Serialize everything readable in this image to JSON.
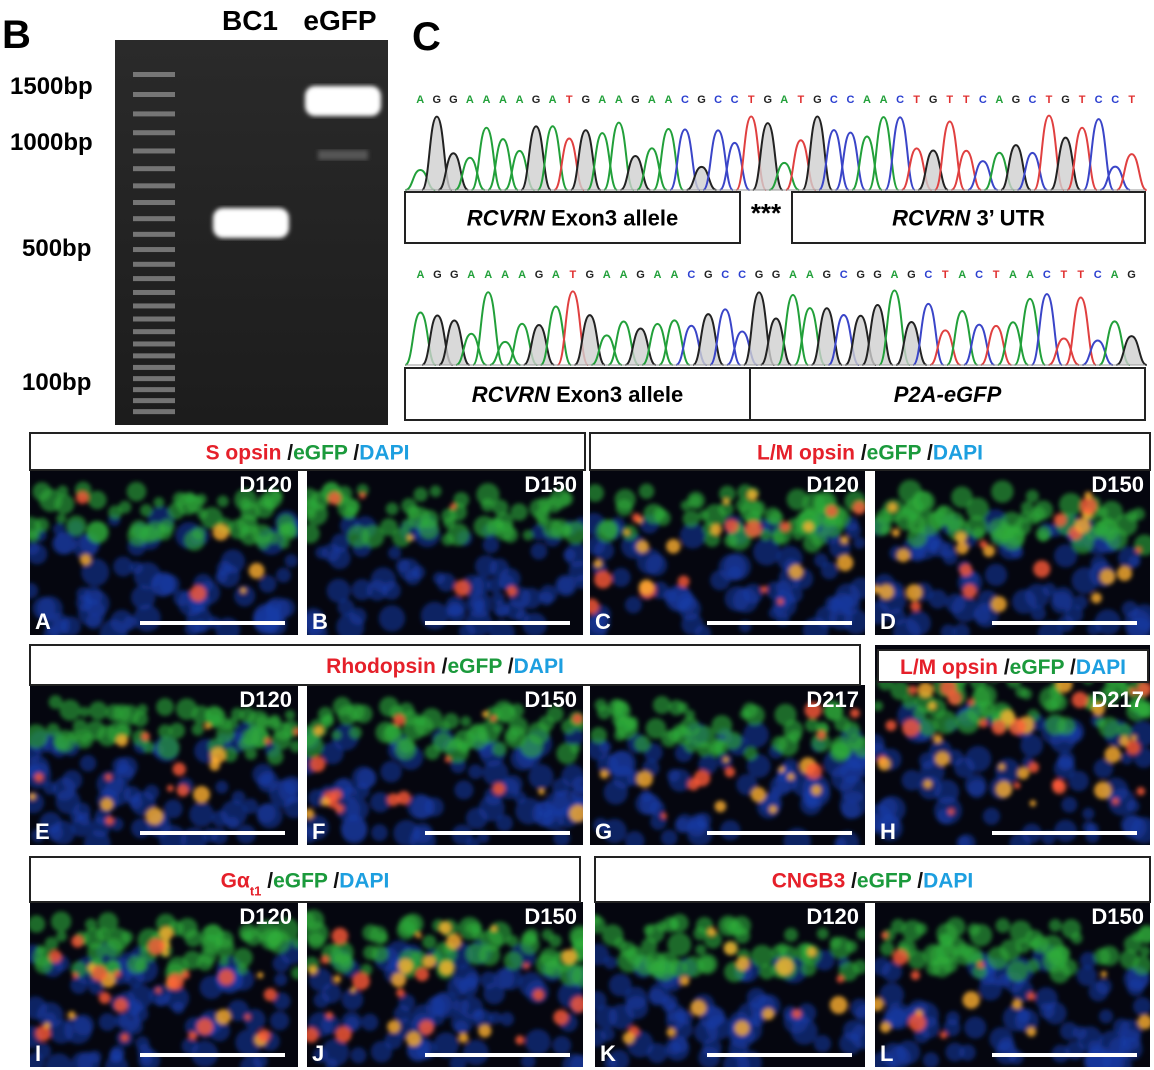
{
  "panel_b": {
    "label": "B",
    "lanes": [
      "BC1",
      "eGFP"
    ],
    "ladder": [
      "1500bp",
      "1000bp",
      "500bp",
      "100bp"
    ]
  },
  "panel_c": {
    "label": "C",
    "rows": [
      {
        "sequence": "AGGAAAAGATGAAGAACGCCTGATGCCAACTGTTCAGCTGTCCT",
        "boxes": [
          {
            "italic": "RCVRN",
            "text": " Exon3 allele"
          },
          {
            "italic": "RCVRN",
            "text": "  3’ UTR"
          }
        ],
        "junction": "***"
      },
      {
        "sequence": "AGGAAAAGATGAAGAACGCCGGAAGCGGAGCTACTAACTTCAG",
        "boxes": [
          {
            "italic": "RCVRN",
            "text": " Exon3 allele"
          },
          {
            "italic": "P2A-eGFP",
            "text": ""
          }
        ]
      }
    ]
  },
  "panels": [
    {
      "header": [
        {
          "text": "S opsin",
          "color": "red"
        },
        {
          "text": " /",
          "color": "black"
        },
        {
          "text": "eGFP",
          "color": "green"
        },
        {
          "text": " /",
          "color": "black"
        },
        {
          "text": "DAPI",
          "color": "blue"
        }
      ],
      "images": [
        {
          "letter": "A",
          "day": "D120"
        },
        {
          "letter": "B",
          "day": "D150"
        }
      ]
    },
    {
      "header": [
        {
          "text": "L/M opsin",
          "color": "red"
        },
        {
          "text": " /",
          "color": "black"
        },
        {
          "text": "eGFP",
          "color": "green"
        },
        {
          "text": " /",
          "color": "black"
        },
        {
          "text": "DAPI",
          "color": "blue"
        }
      ],
      "images": [
        {
          "letter": "C",
          "day": "D120"
        },
        {
          "letter": "D",
          "day": "D150"
        }
      ]
    },
    {
      "header": [
        {
          "text": "Rhodopsin",
          "color": "red"
        },
        {
          "text": " /",
          "color": "black"
        },
        {
          "text": "eGFP",
          "color": "green"
        },
        {
          "text": " /",
          "color": "black"
        },
        {
          "text": "DAPI",
          "color": "blue"
        }
      ],
      "images": [
        {
          "letter": "E",
          "day": "D120"
        },
        {
          "letter": "F",
          "day": "D150"
        },
        {
          "letter": "G",
          "day": "D217"
        }
      ]
    },
    {
      "header": [
        {
          "text": "L/M opsin",
          "color": "red"
        },
        {
          "text": " /",
          "color": "black"
        },
        {
          "text": "eGFP",
          "color": "green"
        },
        {
          "text": " /",
          "color": "black"
        },
        {
          "text": "DAPI",
          "color": "blue"
        }
      ],
      "images": [
        {
          "letter": "H",
          "day": "D217"
        }
      ]
    },
    {
      "header": [
        {
          "text": "Gα",
          "color": "red"
        },
        {
          "text": "t1",
          "color": "red",
          "sub": true
        },
        {
          "text": " /",
          "color": "black"
        },
        {
          "text": "eGFP",
          "color": "green"
        },
        {
          "text": " /",
          "color": "black"
        },
        {
          "text": "DAPI",
          "color": "blue"
        }
      ],
      "images": [
        {
          "letter": "I",
          "day": "D120"
        },
        {
          "letter": "J",
          "day": "D150"
        }
      ]
    },
    {
      "header": [
        {
          "text": "CNGB3",
          "color": "red"
        },
        {
          "text": " /",
          "color": "black"
        },
        {
          "text": "eGFP",
          "color": "green"
        },
        {
          "text": " /",
          "color": "black"
        },
        {
          "text": "DAPI",
          "color": "blue"
        }
      ],
      "images": [
        {
          "letter": "K",
          "day": "D120"
        },
        {
          "letter": "L",
          "day": "D150"
        }
      ]
    }
  ]
}
